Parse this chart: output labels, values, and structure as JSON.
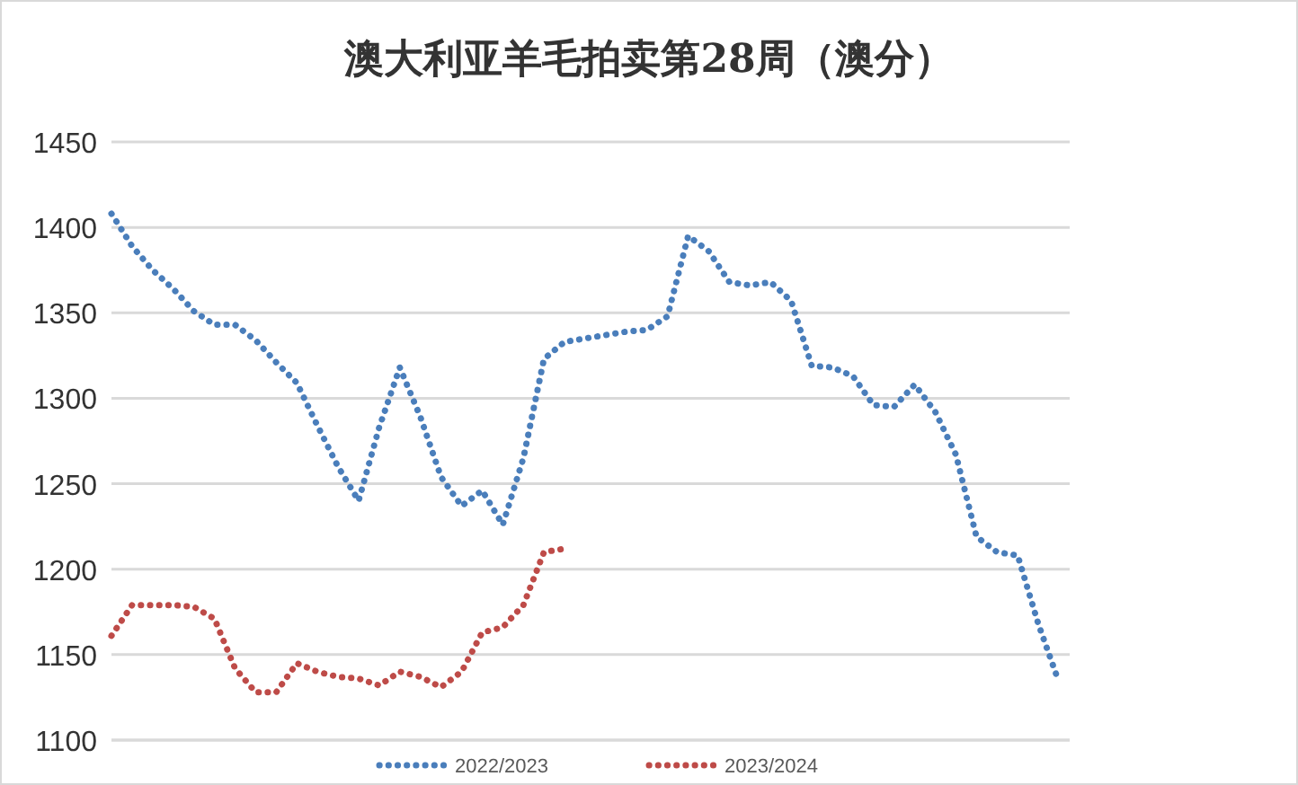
{
  "chart_data": {
    "type": "line",
    "title": "澳大利亚羊毛拍卖第28周（澳分）",
    "categories": [
      null,
      null,
      null,
      null,
      null,
      null,
      null,
      null,
      null,
      null,
      null,
      null,
      null,
      null,
      null,
      null,
      null,
      null,
      null,
      null,
      null,
      null,
      null,
      null,
      null,
      null,
      null,
      null,
      null,
      null,
      null,
      null,
      null,
      null,
      null,
      null,
      null,
      null,
      null,
      null,
      null,
      null,
      null,
      null,
      null,
      null,
      null
    ],
    "ylim": [
      1100,
      1450
    ],
    "yticks": [
      1100,
      1150,
      1200,
      1250,
      1300,
      1350,
      1400,
      1450
    ],
    "grid": "y",
    "legend": "bottom",
    "marker": "none",
    "line_style": "dotted",
    "series": [
      {
        "name": "2022/2023",
        "color": "#4a7ebb",
        "values": [
          1408,
          1389,
          1375,
          1364,
          1351,
          1343,
          1343,
          1334,
          1321,
          1309,
          1284,
          1260,
          1240,
          1283,
          1318,
          1289,
          1254,
          1237,
          1246,
          1226,
          1265,
          1323,
          1333,
          1335,
          1337,
          1339,
          1340,
          1348,
          1395,
          1386,
          1368,
          1366,
          1368,
          1357,
          1319,
          1318,
          1313,
          1296,
          1295,
          1308,
          1292,
          1267,
          1219,
          1210,
          1208,
          1168,
          1134
        ]
      },
      {
        "name": "2023/2024",
        "color": "#be4b48",
        "values": [
          1161,
          1179,
          1179,
          1179,
          1178,
          1171,
          1142,
          1128,
          1128,
          1145,
          1140,
          1137,
          1136,
          1132,
          1140,
          1137,
          1131,
          1140,
          1163,
          1166,
          1179,
          1210,
          1212,
          null,
          null,
          null,
          null,
          null,
          null,
          null,
          null,
          null,
          null,
          null,
          null,
          null,
          null,
          null,
          null,
          null,
          null,
          null,
          null,
          null,
          null,
          null,
          null
        ]
      }
    ]
  }
}
